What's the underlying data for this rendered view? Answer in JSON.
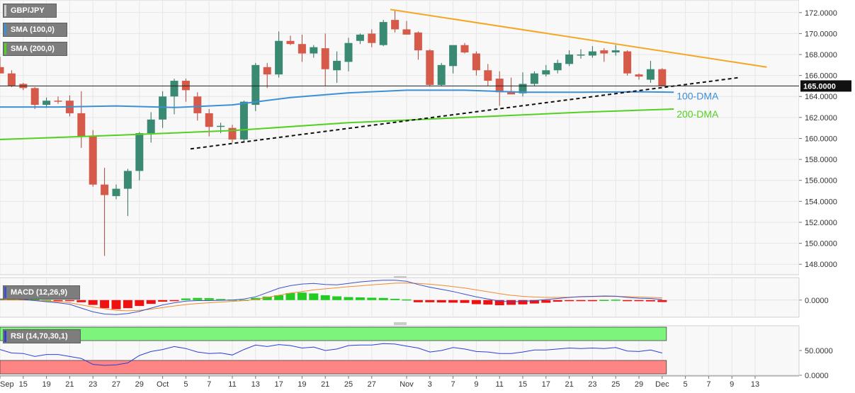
{
  "colors": {
    "bull": "#3a8a73",
    "bear": "#d65a4a",
    "sma100": "#3d8fd6",
    "sma200": "#52d11f",
    "resistance": "#f5a623",
    "support": "#111111",
    "macd_line": "#3a53c9",
    "signal_line": "#f28a30",
    "hist_pos": "#22cc22",
    "hist_neg": "#ee1111",
    "rsi_line": "#2c3fd4",
    "rsi_overbought": "#7df57d",
    "rsi_oversold": "#ff8585",
    "legend_bg": "#7d7d7d"
  },
  "legends": {
    "symbol": "GBP/JPY",
    "sma100": "SMA (100,0)",
    "sma200": "SMA (200,0)",
    "macd": "MACD (12,26,9)",
    "rsi": "RSI (14,70,30,1)"
  },
  "annotations": {
    "dma100": "100-DMA",
    "dma200": "200-DMA"
  },
  "chart_data": [
    {
      "type": "candlestick",
      "ylim": [
        147.0,
        173.2
      ],
      "grid": true,
      "y_ticks": [
        {
          "value": 148,
          "label": "148.0000"
        },
        {
          "value": 150,
          "label": "150.0000"
        },
        {
          "value": 152,
          "label": "152.0000"
        },
        {
          "value": 154,
          "label": "154.0000"
        },
        {
          "value": 156,
          "label": "156.0000"
        },
        {
          "value": 158,
          "label": "158.0000"
        },
        {
          "value": 160,
          "label": "160.0000"
        },
        {
          "value": 162,
          "label": "162.0000"
        },
        {
          "value": 164,
          "label": "164.0000"
        },
        {
          "value": 166,
          "label": "166.0000"
        },
        {
          "value": 168,
          "label": "168.0000"
        },
        {
          "value": 170,
          "label": "170.0000"
        },
        {
          "value": 172,
          "label": "172.0000"
        }
      ],
      "current_price": {
        "value": 165.0,
        "label": "165.0000"
      },
      "x_ticks": [
        {
          "i": 0,
          "label": "Sep"
        },
        {
          "i": 2,
          "label": "15"
        },
        {
          "i": 4,
          "label": "19"
        },
        {
          "i": 6,
          "label": "21"
        },
        {
          "i": 8,
          "label": "23"
        },
        {
          "i": 10,
          "label": "27"
        },
        {
          "i": 12,
          "label": "29"
        },
        {
          "i": 14,
          "label": "Oct"
        },
        {
          "i": 16,
          "label": "5"
        },
        {
          "i": 18,
          "label": "7"
        },
        {
          "i": 20,
          "label": "11"
        },
        {
          "i": 22,
          "label": "13"
        },
        {
          "i": 24,
          "label": "17"
        },
        {
          "i": 26,
          "label": "19"
        },
        {
          "i": 28,
          "label": "21"
        },
        {
          "i": 30,
          "label": "25"
        },
        {
          "i": 32,
          "label": "27"
        },
        {
          "i": 35,
          "label": "Nov"
        },
        {
          "i": 37,
          "label": "3"
        },
        {
          "i": 39,
          "label": "7"
        },
        {
          "i": 41,
          "label": "9"
        },
        {
          "i": 43,
          "label": "11"
        },
        {
          "i": 45,
          "label": "15"
        },
        {
          "i": 47,
          "label": "17"
        },
        {
          "i": 49,
          "label": "21"
        },
        {
          "i": 51,
          "label": "23"
        },
        {
          "i": 53,
          "label": "25"
        },
        {
          "i": 55,
          "label": "29"
        },
        {
          "i": 57,
          "label": "Dec"
        },
        {
          "i": 59,
          "label": "5"
        },
        {
          "i": 61,
          "label": "7"
        },
        {
          "i": 63,
          "label": "9"
        },
        {
          "i": 65,
          "label": "13"
        }
      ],
      "candles": [
        [
          166.8,
          167.8,
          166.3,
          166.2
        ],
        [
          166.2,
          166.5,
          164.9,
          165.0
        ],
        [
          165.2,
          165.3,
          164.6,
          164.8
        ],
        [
          164.8,
          164.9,
          162.8,
          163.2
        ],
        [
          163.2,
          163.9,
          162.9,
          163.6
        ],
        [
          163.6,
          164.0,
          163.3,
          163.5
        ],
        [
          163.6,
          164.1,
          162.1,
          162.4
        ],
        [
          162.4,
          164.5,
          159.1,
          160.2
        ],
        [
          160.2,
          160.8,
          155.4,
          155.6
        ],
        [
          155.6,
          157.2,
          148.8,
          154.6
        ],
        [
          154.5,
          155.6,
          154.2,
          155.2
        ],
        [
          155.2,
          157.1,
          152.6,
          156.9
        ],
        [
          156.9,
          160.6,
          156.0,
          160.5
        ],
        [
          160.5,
          162.5,
          159.6,
          161.8
        ],
        [
          161.8,
          164.5,
          161.0,
          164.0
        ],
        [
          164.0,
          165.7,
          162.3,
          165.5
        ],
        [
          165.5,
          165.7,
          163.5,
          164.6
        ],
        [
          164.0,
          164.4,
          161.7,
          162.4
        ],
        [
          162.4,
          162.8,
          160.2,
          161.1
        ],
        [
          161.1,
          161.5,
          160.5,
          161.2
        ],
        [
          161.0,
          161.3,
          159.6,
          159.9
        ],
        [
          159.9,
          163.6,
          159.6,
          163.5
        ],
        [
          163.2,
          167.2,
          162.6,
          167.0
        ],
        [
          166.8,
          167.2,
          164.8,
          166.1
        ],
        [
          166.1,
          170.2,
          165.8,
          169.3
        ],
        [
          169.3,
          169.8,
          168.9,
          169.0
        ],
        [
          169.0,
          169.9,
          167.3,
          168.1
        ],
        [
          168.1,
          168.9,
          167.7,
          168.7
        ],
        [
          168.6,
          170.0,
          165.0,
          166.6
        ],
        [
          166.5,
          168.3,
          165.3,
          167.4
        ],
        [
          167.3,
          169.6,
          166.4,
          169.1
        ],
        [
          169.3,
          170.0,
          169.0,
          169.9
        ],
        [
          170.0,
          170.4,
          168.7,
          169.1
        ],
        [
          168.9,
          171.3,
          168.8,
          171.1
        ],
        [
          171.3,
          172.2,
          170.1,
          170.4
        ],
        [
          170.4,
          171.2,
          170.0,
          169.9
        ],
        [
          170.1,
          170.2,
          167.5,
          168.4
        ],
        [
          168.4,
          168.5,
          165.0,
          165.1
        ],
        [
          165.1,
          167.2,
          165.0,
          167.0
        ],
        [
          166.9,
          168.8,
          166.2,
          168.9
        ],
        [
          168.9,
          169.1,
          168.1,
          168.2
        ],
        [
          168.1,
          168.3,
          166.0,
          166.5
        ],
        [
          166.5,
          167.1,
          165.0,
          165.5
        ],
        [
          165.7,
          166.4,
          163.1,
          164.4
        ],
        [
          164.5,
          165.8,
          164.2,
          164.2
        ],
        [
          164.3,
          166.3,
          164.0,
          165.2
        ],
        [
          165.2,
          166.4,
          165.0,
          166.2
        ],
        [
          166.1,
          167.0,
          165.9,
          166.5
        ],
        [
          166.5,
          167.5,
          166.2,
          167.2
        ],
        [
          167.1,
          168.4,
          166.9,
          168.0
        ],
        [
          168.0,
          168.5,
          167.6,
          168.0
        ],
        [
          167.9,
          168.8,
          167.7,
          168.3
        ],
        [
          168.4,
          168.6,
          167.3,
          168.1
        ],
        [
          168.2,
          168.9,
          167.9,
          168.4
        ],
        [
          168.3,
          168.4,
          166.0,
          166.2
        ],
        [
          166.1,
          166.2,
          165.6,
          165.9
        ],
        [
          165.6,
          167.4,
          165.3,
          166.6
        ],
        [
          166.6,
          166.7,
          165.0,
          165.0
        ]
      ],
      "sma100": [
        [
          0,
          163.0
        ],
        [
          5,
          163.0
        ],
        [
          10,
          163.1
        ],
        [
          15,
          162.95
        ],
        [
          20,
          163.2
        ],
        [
          25,
          163.9
        ],
        [
          30,
          164.35
        ],
        [
          35,
          164.6
        ],
        [
          40,
          164.6
        ],
        [
          45,
          164.4
        ],
        [
          50,
          164.4
        ],
        [
          55,
          164.45
        ],
        [
          58,
          164.4
        ]
      ],
      "sma200": [
        [
          0,
          159.9
        ],
        [
          10,
          160.3
        ],
        [
          20,
          160.75
        ],
        [
          30,
          161.5
        ],
        [
          40,
          162.0
        ],
        [
          50,
          162.5
        ],
        [
          58,
          162.8
        ]
      ],
      "resistance_line": [
        [
          33.6,
          172.3
        ],
        [
          66,
          166.8
        ]
      ],
      "support_line": [
        [
          16.4,
          159.0
        ],
        [
          63.6,
          165.8
        ]
      ]
    },
    {
      "type": "bar",
      "name": "MACD (12,26,9)",
      "ylim": [
        -1.6,
        2.1
      ],
      "y_ticks": [
        {
          "value": 0,
          "label": "0.0000"
        }
      ],
      "histogram": [
        0.12,
        0.12,
        0.1,
        0.05,
        0.01,
        -0.02,
        -0.05,
        -0.2,
        -0.45,
        -0.75,
        -0.85,
        -0.75,
        -0.55,
        -0.35,
        -0.15,
        -0.02,
        0.15,
        0.2,
        0.18,
        0.1,
        0.05,
        0.02,
        0.2,
        0.32,
        0.45,
        0.65,
        0.7,
        0.62,
        0.45,
        0.35,
        0.28,
        0.25,
        0.22,
        0.2,
        0.12,
        0.06,
        -0.2,
        -0.2,
        -0.22,
        -0.24,
        -0.26,
        -0.38,
        -0.42,
        -0.48,
        -0.44,
        -0.4,
        -0.32,
        -0.25,
        -0.15,
        -0.1,
        -0.04,
        -0.02,
        0.02,
        0.04,
        -0.02,
        -0.08,
        -0.12,
        -0.18
      ],
      "macd_line": [
        0.1,
        0.1,
        0.05,
        -0.05,
        -0.15,
        -0.25,
        -0.4,
        -0.75,
        -1.1,
        -1.3,
        -1.35,
        -1.25,
        -1.05,
        -0.75,
        -0.45,
        -0.25,
        -0.1,
        -0.05,
        -0.05,
        -0.02,
        0.0,
        0.1,
        0.3,
        0.7,
        1.1,
        1.35,
        1.5,
        1.55,
        1.45,
        1.42,
        1.55,
        1.7,
        1.78,
        1.85,
        1.85,
        1.75,
        1.45,
        1.2,
        1.0,
        0.8,
        0.55,
        0.3,
        0.1,
        -0.1,
        -0.15,
        -0.12,
        -0.05,
        0.05,
        0.15,
        0.25,
        0.32,
        0.35,
        0.38,
        0.36,
        0.25,
        0.18,
        0.15,
        0.05
      ],
      "signal_line": [
        0.0,
        0.0,
        0.0,
        -0.03,
        -0.08,
        -0.15,
        -0.25,
        -0.45,
        -0.65,
        -0.8,
        -0.95,
        -1.0,
        -0.95,
        -0.85,
        -0.7,
        -0.55,
        -0.42,
        -0.32,
        -0.25,
        -0.18,
        -0.12,
        -0.05,
        0.05,
        0.25,
        0.45,
        0.65,
        0.8,
        0.95,
        1.05,
        1.15,
        1.25,
        1.32,
        1.42,
        1.5,
        1.58,
        1.6,
        1.55,
        1.48,
        1.38,
        1.26,
        1.12,
        0.95,
        0.78,
        0.6,
        0.45,
        0.35,
        0.28,
        0.25,
        0.25,
        0.27,
        0.3,
        0.32,
        0.34,
        0.34,
        0.32,
        0.28,
        0.25,
        0.22
      ]
    },
    {
      "type": "line",
      "name": "RSI (14,70,30,1)",
      "ylim": [
        0,
        100
      ],
      "y_ticks": [
        {
          "value": 0,
          "label": "0.0000"
        },
        {
          "value": 50,
          "label": "50.0000"
        }
      ],
      "overbought": 70,
      "oversold": 30,
      "values": [
        52,
        45,
        44,
        38,
        42,
        42,
        38,
        34,
        22,
        20,
        21,
        25,
        40,
        48,
        52,
        58,
        54,
        47,
        44,
        45,
        41,
        52,
        61,
        58,
        62,
        60,
        55,
        57,
        50,
        53,
        60,
        61,
        61,
        64,
        63,
        59,
        55,
        47,
        50,
        56,
        53,
        48,
        47,
        44,
        44,
        47,
        51,
        51,
        53,
        55,
        54,
        55,
        54,
        56,
        49,
        48,
        51,
        45
      ]
    }
  ]
}
